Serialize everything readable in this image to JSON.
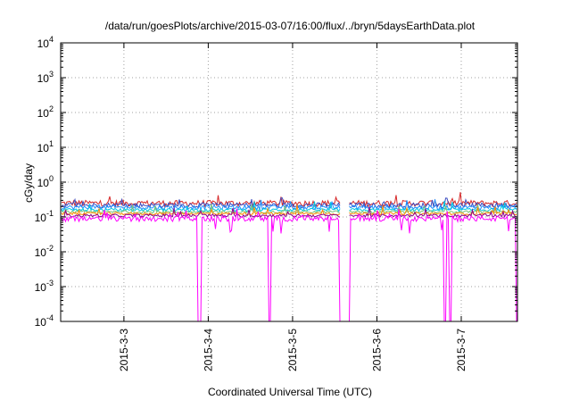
{
  "chart_data": {
    "type": "line",
    "title": "/data/run/goesPlots/archive/2015-03-07/16:00/flux/../bryn/5daysEarthData.plot",
    "xlabel": "Coordinated Universal Time (UTC)",
    "ylabel": "cGy/day",
    "y_scale": "log",
    "ylim": [
      0.0001,
      10000
    ],
    "y_ticks": [
      {
        "value": 0.0001,
        "base": "10",
        "exp": "-4"
      },
      {
        "value": 0.001,
        "base": "10",
        "exp": "-3"
      },
      {
        "value": 0.01,
        "base": "10",
        "exp": "-2"
      },
      {
        "value": 0.1,
        "base": "10",
        "exp": "-1"
      },
      {
        "value": 1,
        "base": "10",
        "exp": "0"
      },
      {
        "value": 10,
        "base": "10",
        "exp": "1"
      },
      {
        "value": 100,
        "base": "10",
        "exp": "2"
      },
      {
        "value": 1000,
        "base": "10",
        "exp": "3"
      },
      {
        "value": 10000,
        "base": "10",
        "exp": "4"
      }
    ],
    "xlim": [
      "2015-03-02 06:00",
      "2015-03-07 16:00"
    ],
    "x_ticks": [
      {
        "value": "2015-03-03 00:00",
        "label": "2015-3-3"
      },
      {
        "value": "2015-03-04 00:00",
        "label": "2015-3-4"
      },
      {
        "value": "2015-03-05 00:00",
        "label": "2015-3-5"
      },
      {
        "value": "2015-03-06 00:00",
        "label": "2015-3-6"
      },
      {
        "value": "2015-03-07 00:00",
        "label": "2015-3-7"
      }
    ],
    "grid": true,
    "legend": "none",
    "data_gap": [
      "2015-03-05 13:30",
      "2015-03-05 16:00"
    ],
    "series": [
      {
        "color": "#d62728",
        "level": 0.25,
        "spread": 0.2
      },
      {
        "color": "#3b4cc0",
        "level": 0.22,
        "spread": 0.16
      },
      {
        "color": "#1e90ff",
        "level": 0.19,
        "spread": 0.14
      },
      {
        "color": "#00c8e0",
        "level": 0.16,
        "spread": 0.1
      },
      {
        "color": "#7cc47c",
        "level": 0.14,
        "spread": 0.08
      },
      {
        "color": "#ff8c00",
        "level": 0.125,
        "spread": 0.08
      },
      {
        "color": "#8b008b",
        "level": 0.11,
        "spread": 0.1
      },
      {
        "color": "#ff00ff",
        "level": 0.09,
        "spread": 0.18
      }
    ],
    "dropouts": [
      "2015-03-03 21:30",
      "2015-03-04 17:30",
      "2015-03-05 13:30",
      "2015-03-05 16:00",
      "2015-03-06 19:15",
      "2015-03-06 20:45",
      "2015-03-07 16:00"
    ]
  }
}
